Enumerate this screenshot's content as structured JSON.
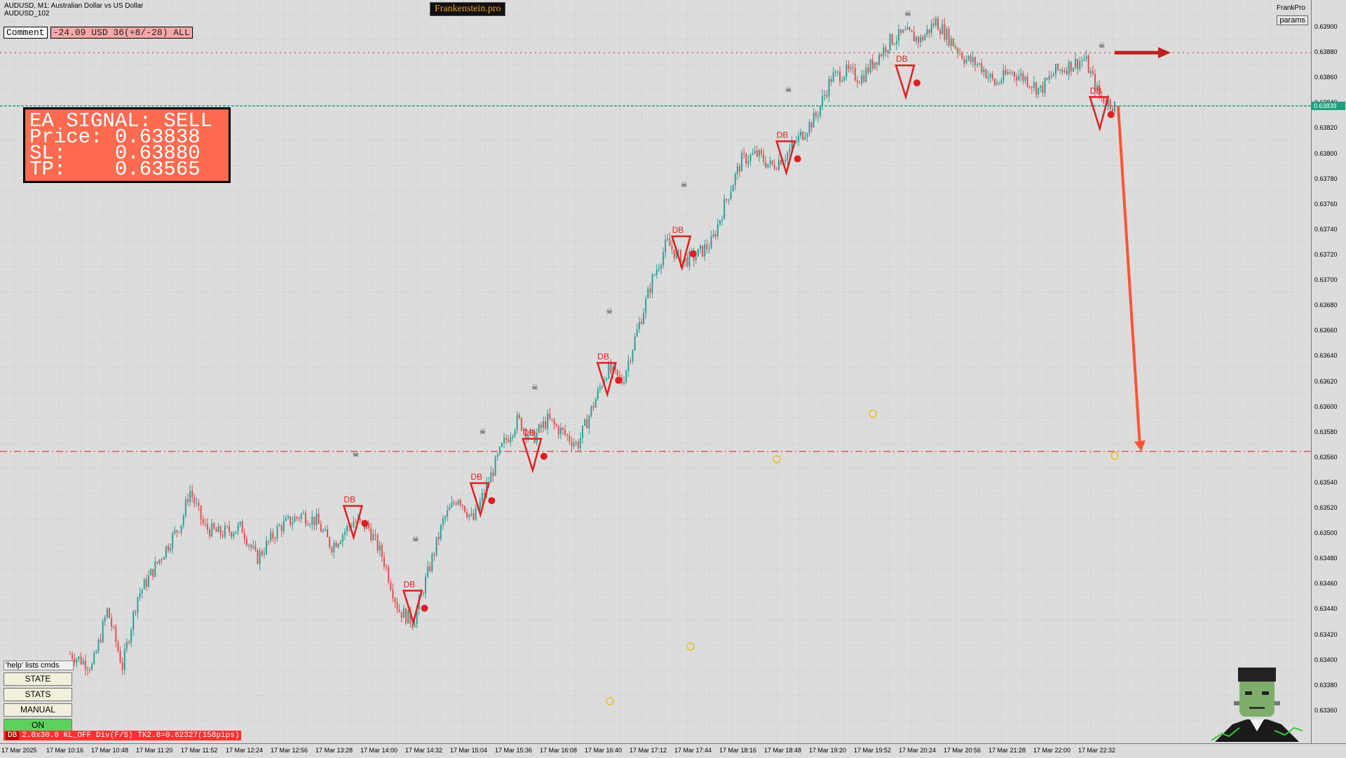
{
  "header": {
    "symbol_line": "AUDUSD, M1:  Australian Dollar vs US Dollar",
    "sub_line": "AUDUSD_102",
    "brand": "Frankenstein.pro",
    "right_label": "FrankPro",
    "params_button": "params"
  },
  "comment": {
    "label": "Comment",
    "value": "-24.09 USD 36(+8/-28) ALL"
  },
  "signal": {
    "line1": "EA SIGNAL: SELL",
    "line2": "Price: 0.63838",
    "line3": "SL:    0.63880",
    "line4": "TP:    0.63565"
  },
  "commands": {
    "help": "'help' lists cmds",
    "buttons": [
      "STATE",
      "STATS",
      "MANUAL",
      "ON"
    ]
  },
  "status": {
    "tag": "DB",
    "text": "2.0x30.0 KL_OFF Div(F/S) TK2.8=0.62327(158pips)"
  },
  "colors": {
    "background": "#dcdcdc",
    "bull": "#2aa198",
    "bear": "#e05050",
    "signal_panel": "#ff6b50",
    "arrow": "#ff5533",
    "current_price_line": "#20a080"
  },
  "chart_data": {
    "type": "candlestick",
    "symbol": "AUDUSD",
    "timeframe": "M1",
    "current_price": "0.63839",
    "price_ticks": [
      "0.63900",
      "0.63880",
      "0.63860",
      "0.63840",
      "0.63820",
      "0.63800",
      "0.63780",
      "0.63760",
      "0.63740",
      "0.63720",
      "0.63700",
      "0.63680",
      "0.63660",
      "0.63640",
      "0.63620",
      "0.63600",
      "0.63580",
      "0.63560",
      "0.63540",
      "0.63520",
      "0.63500",
      "0.63480",
      "0.63460",
      "0.63440",
      "0.63420",
      "0.63400",
      "0.63380",
      "0.63360"
    ],
    "time_ticks": [
      "17 Mar 2025",
      "17 Mar 10:16",
      "17 Mar 10:48",
      "17 Mar 11:20",
      "17 Mar 11:52",
      "17 Mar 12:24",
      "17 Mar 12:56",
      "17 Mar 13:28",
      "17 Mar 14:00",
      "17 Mar 14:32",
      "17 Mar 15:04",
      "17 Mar 15:36",
      "17 Mar 16:08",
      "17 Mar 16:40",
      "17 Mar 17:12",
      "17 Mar 17:44",
      "17 Mar 18:16",
      "17 Mar 18:48",
      "17 Mar 19:20",
      "17 Mar 19:52",
      "17 Mar 20:24",
      "17 Mar 20:56",
      "17 Mar 21:28",
      "17 Mar 22:00",
      "17 Mar 22:32"
    ],
    "ylim": [
      0.6334,
      0.63915
    ],
    "levels": {
      "sl": 0.6388,
      "entry": 0.63838,
      "tp": 0.63565
    },
    "trend_path": [
      [
        0,
        0.63405
      ],
      [
        3,
        0.63395
      ],
      [
        5,
        0.6344
      ],
      [
        7,
        0.63395
      ],
      [
        9,
        0.6345
      ],
      [
        12,
        0.6348
      ],
      [
        15,
        0.6351
      ],
      [
        16,
        0.63535
      ],
      [
        18,
        0.63505
      ],
      [
        20,
        0.635
      ],
      [
        23,
        0.63505
      ],
      [
        25,
        0.6348
      ],
      [
        28,
        0.63505
      ],
      [
        31,
        0.63515
      ],
      [
        33,
        0.6351
      ],
      [
        35,
        0.6349
      ],
      [
        38,
        0.6351
      ],
      [
        40,
        0.63505
      ],
      [
        42,
        0.6348
      ],
      [
        44,
        0.6344
      ],
      [
        46,
        0.6343
      ],
      [
        48,
        0.6347
      ],
      [
        50,
        0.6351
      ],
      [
        52,
        0.6353
      ],
      [
        54,
        0.6351
      ],
      [
        56,
        0.6354
      ],
      [
        58,
        0.6357
      ],
      [
        60,
        0.6359
      ],
      [
        62,
        0.63575
      ],
      [
        64,
        0.6359
      ],
      [
        66,
        0.6358
      ],
      [
        68,
        0.6357
      ],
      [
        70,
        0.636
      ],
      [
        72,
        0.6363
      ],
      [
        74,
        0.6362
      ],
      [
        76,
        0.6366
      ],
      [
        78,
        0.637
      ],
      [
        80,
        0.6373
      ],
      [
        82,
        0.63715
      ],
      [
        84,
        0.6372
      ],
      [
        86,
        0.6373
      ],
      [
        88,
        0.63765
      ],
      [
        90,
        0.63795
      ],
      [
        92,
        0.638
      ],
      [
        94,
        0.6379
      ],
      [
        96,
        0.638
      ],
      [
        98,
        0.63815
      ],
      [
        100,
        0.6383
      ],
      [
        102,
        0.6386
      ],
      [
        104,
        0.63865
      ],
      [
        106,
        0.6386
      ],
      [
        108,
        0.63875
      ],
      [
        110,
        0.6389
      ],
      [
        112,
        0.63895
      ],
      [
        114,
        0.6389
      ],
      [
        116,
        0.63905
      ],
      [
        118,
        0.6389
      ],
      [
        120,
        0.63875
      ],
      [
        122,
        0.6387
      ],
      [
        124,
        0.63855
      ],
      [
        126,
        0.63865
      ],
      [
        128,
        0.6386
      ],
      [
        130,
        0.6385
      ],
      [
        132,
        0.63865
      ],
      [
        134,
        0.6387
      ],
      [
        136,
        0.63875
      ],
      [
        138,
        0.63845
      ],
      [
        140,
        0.63838
      ]
    ],
    "db_markers": [
      {
        "label": "DB",
        "price": 0.63522
      },
      {
        "label": "DB",
        "price": 0.63455
      },
      {
        "label": "DB",
        "price": 0.6354
      },
      {
        "label": "DB",
        "price": 0.63575
      },
      {
        "label": "DB",
        "price": 0.63635
      },
      {
        "label": "DB",
        "price": 0.63735
      },
      {
        "label": "DB",
        "price": 0.6381
      },
      {
        "label": "DB",
        "price": 0.6387
      },
      {
        "label": "DB",
        "price": 0.63845
      }
    ]
  }
}
